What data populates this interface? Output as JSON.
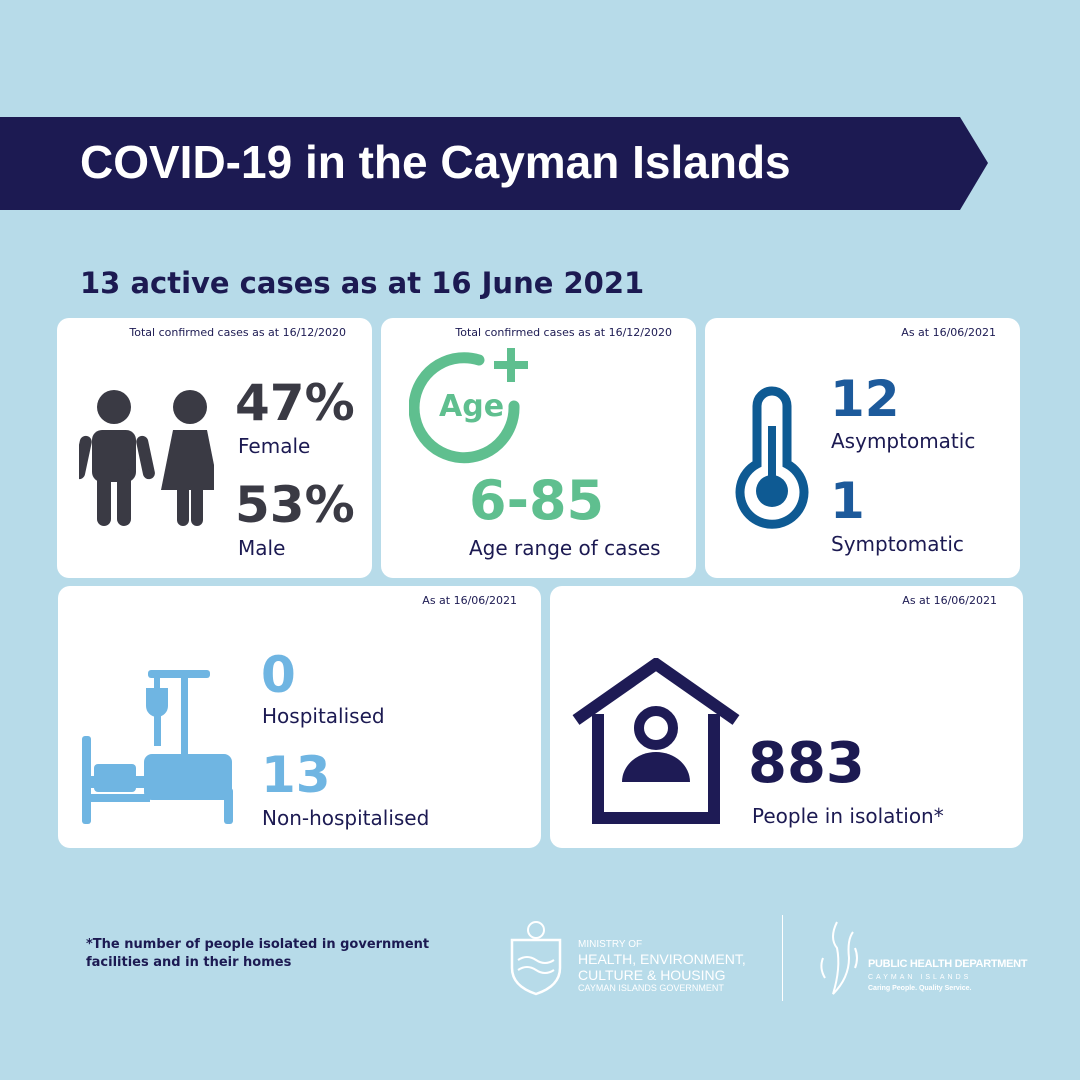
{
  "title": "COVID-19 in the Cayman Islands",
  "subtitle": "13 active cases as at 16 June 2021",
  "colors": {
    "background": "#b7dbe9",
    "navy": "#1c1a52",
    "gender": "#3a3a44",
    "age": "#5fbf8f",
    "symptom": "#1d5a9b",
    "hospital": "#6fb5e2"
  },
  "cards": {
    "gender": {
      "note": "Total confirmed cases as at 16/12/2020",
      "female_pct": "47%",
      "female_label": "Female",
      "male_pct": "53%",
      "male_label": "Male",
      "icon": "male-female-icon"
    },
    "age": {
      "note": "Total confirmed cases as at 16/12/2020",
      "icon_text": "Age",
      "range": "6-85",
      "label": "Age range of cases",
      "icon": "age-plus-icon"
    },
    "symptoms": {
      "note": "As at 16/06/2021",
      "asym_value": "12",
      "asym_label": "Asymptomatic",
      "sym_value": "1",
      "sym_label": "Symptomatic",
      "icon": "thermometer-icon"
    },
    "hospital": {
      "note": "As at 16/06/2021",
      "hosp_value": "0",
      "hosp_label": "Hospitalised",
      "non_value": "13",
      "non_label": "Non-hospitalised",
      "icon": "hospital-bed-icon"
    },
    "isolation": {
      "note": "As at 16/06/2021",
      "value": "883",
      "label": "People in isolation*",
      "icon": "house-person-icon"
    }
  },
  "footnote": "*The number of people isolated in government facilities and in their homes",
  "logos": {
    "ministry": {
      "line1": "MINISTRY OF",
      "line2": "HEALTH, ENVIRONMENT,",
      "line3": "CULTURE & HOUSING",
      "line4": "CAYMAN ISLANDS GOVERNMENT"
    },
    "phd": {
      "line1": "PUBLIC HEALTH DEPARTMENT",
      "line2": "CAYMAN ISLANDS",
      "line3": "Caring People. Quality Service."
    }
  }
}
